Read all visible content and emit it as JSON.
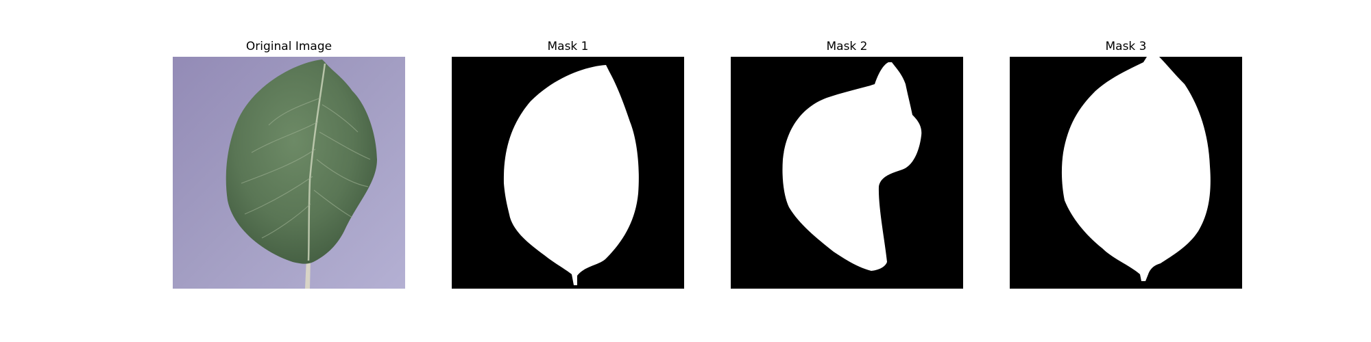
{
  "figure": {
    "panels": [
      {
        "title": "Original Image"
      },
      {
        "title": "Mask 1"
      },
      {
        "title": "Mask 2"
      },
      {
        "title": "Mask 3"
      }
    ]
  },
  "colors": {
    "background": "#ffffff",
    "mask_background": "#000000",
    "mask_foreground": "#ffffff",
    "backdrop_purple": "#a39ec3",
    "leaf_green": "#5d7a55",
    "leaf_dark": "#3f5a3b",
    "vein": "#c9d2b8"
  }
}
